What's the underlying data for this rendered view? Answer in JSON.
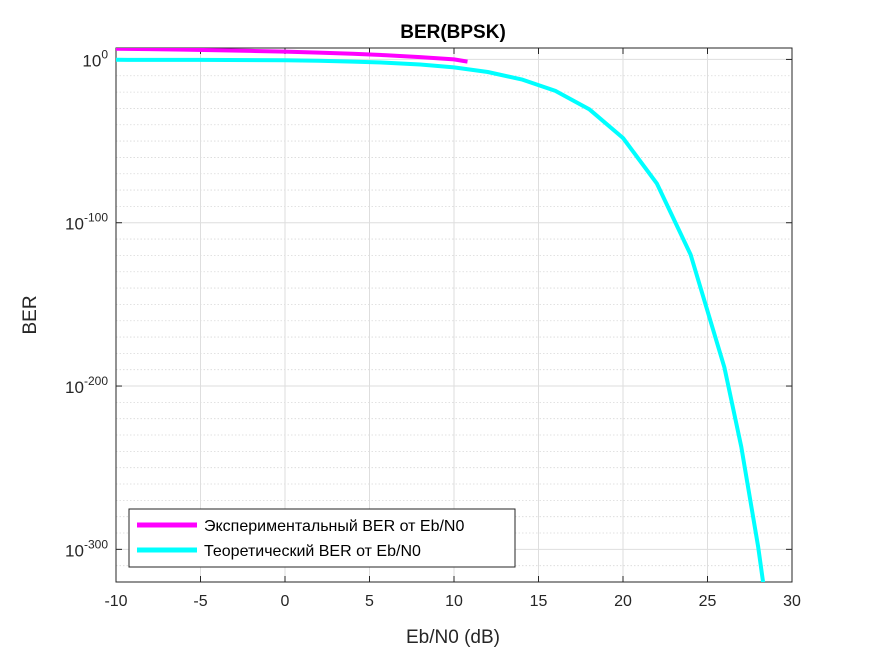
{
  "chart_data": {
    "type": "line",
    "title": "BER(BPSK)",
    "xlabel": "Eb/N0 (dB)",
    "ylabel": "BER",
    "xlim": [
      -10,
      30
    ],
    "ylim_log10": [
      -320,
      7
    ],
    "y_scale": "log",
    "grid": true,
    "minor_grid": true,
    "legend_position": "bottom-left",
    "x_ticks": [
      -10,
      -5,
      0,
      5,
      10,
      15,
      20,
      25,
      30
    ],
    "x_tick_labels": [
      "-10",
      "-5",
      "0",
      "5",
      "10",
      "15",
      "20",
      "25",
      "30"
    ],
    "y_ticks": [
      {
        "base": "10",
        "exp": "0",
        "value_log10": 0
      },
      {
        "base": "10",
        "exp": "-100",
        "value_log10": -100
      },
      {
        "base": "10",
        "exp": "-200",
        "value_log10": -200
      },
      {
        "base": "10",
        "exp": "-300",
        "value_log10": -300
      }
    ],
    "series": [
      {
        "name": "Экспериментальный BER от Eb/N0",
        "color": "#ff00ff",
        "x": [
          -10,
          -8,
          -6,
          -4,
          -2,
          0,
          2,
          4,
          6,
          8,
          10,
          10.8
        ],
        "y_log10": [
          6.5,
          6.3,
          6.0,
          5.6,
          5.2,
          4.8,
          4.2,
          3.5,
          2.6,
          1.4,
          0.0,
          -1.3
        ]
      },
      {
        "name": "Теоретический BER от Eb/N0",
        "color": "#00ffff",
        "x": [
          -10,
          -5,
          0,
          2,
          4,
          6,
          8,
          10,
          12,
          14,
          16,
          18,
          20,
          22,
          24,
          26,
          27,
          28,
          28.6
        ],
        "y_log10": [
          -0.2,
          -0.3,
          -0.5,
          -0.8,
          -1.3,
          -2.0,
          -3.1,
          -4.9,
          -7.7,
          -12.2,
          -19.3,
          -30.5,
          -48.1,
          -75.9,
          -119.5,
          -188.6,
          -237.3,
          -298.6,
          -343.0
        ]
      }
    ]
  }
}
